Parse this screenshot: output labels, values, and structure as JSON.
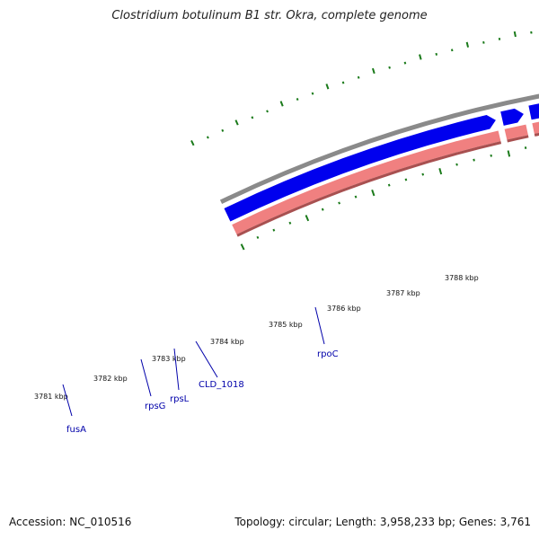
{
  "title": "Clostridium botulinum B1 str. Okra, complete genome",
  "footer": {
    "accession": "Accession: NC_010516",
    "summary": "Topology: circular; Length: 3,958,233 bp; Genes: 3,761"
  },
  "colors": {
    "backbone": "#8a8a8a",
    "forward_gene": "#0000ee",
    "cds_pink": "#f08080",
    "cds_orange": "#ff8c00",
    "gc_tick": "#1a7a1a",
    "label_line": "#0000aa"
  },
  "kbp_labels": [
    "3781 kbp",
    "3782 kbp",
    "3783 kbp",
    "3784 kbp",
    "3785 kbp",
    "3786 kbp",
    "3787 kbp",
    "3788 kbp"
  ],
  "genes": [
    {
      "name": "fusA"
    },
    {
      "name": "rpsG"
    },
    {
      "name": "rpsL"
    },
    {
      "name": "CLD_1018"
    },
    {
      "name": "rpoC"
    }
  ]
}
